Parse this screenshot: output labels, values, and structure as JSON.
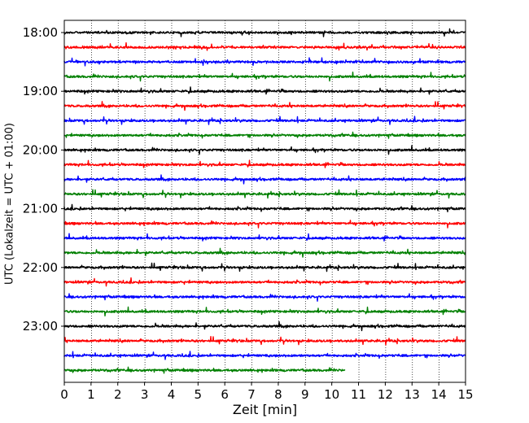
{
  "chart_data": {
    "type": "line",
    "subtype": "helicorder-seismogram",
    "xlabel": "Zeit  [min]",
    "ylabel": "UTC (Lokalzeit = UTC + 01:00)",
    "xlim": [
      0,
      15
    ],
    "x_ticks": [
      "0",
      "1",
      "2",
      "3",
      "4",
      "5",
      "6",
      "7",
      "8",
      "9",
      "10",
      "11",
      "12",
      "13",
      "14",
      "15"
    ],
    "y_ticks": [
      "18:00",
      "19:00",
      "20:00",
      "21:00",
      "22:00",
      "23:00"
    ],
    "grid": "vertical dotted lines at each minute",
    "trace_interval_minutes": 15,
    "color_cycle": [
      "#000000",
      "#ff0000",
      "#0000ff",
      "#008000"
    ],
    "traces": [
      {
        "start": "18:00",
        "end_minute": 15
      },
      {
        "start": "18:15",
        "end_minute": 15
      },
      {
        "start": "18:30",
        "end_minute": 15
      },
      {
        "start": "18:45",
        "end_minute": 15
      },
      {
        "start": "19:00",
        "end_minute": 15
      },
      {
        "start": "19:15",
        "end_minute": 15
      },
      {
        "start": "19:30",
        "end_minute": 15
      },
      {
        "start": "19:45",
        "end_minute": 15
      },
      {
        "start": "20:00",
        "end_minute": 15
      },
      {
        "start": "20:15",
        "end_minute": 15
      },
      {
        "start": "20:30",
        "end_minute": 15
      },
      {
        "start": "20:45",
        "end_minute": 15
      },
      {
        "start": "21:00",
        "end_minute": 15
      },
      {
        "start": "21:15",
        "end_minute": 15
      },
      {
        "start": "21:30",
        "end_minute": 15
      },
      {
        "start": "21:45",
        "end_minute": 15
      },
      {
        "start": "22:00",
        "end_minute": 15
      },
      {
        "start": "22:15",
        "end_minute": 15
      },
      {
        "start": "22:30",
        "end_minute": 15
      },
      {
        "start": "22:45",
        "end_minute": 15
      },
      {
        "start": "23:00",
        "end_minute": 15
      },
      {
        "start": "23:15",
        "end_minute": 15
      },
      {
        "start": "23:30",
        "end_minute": 15
      },
      {
        "start": "23:45",
        "end_minute": 10.5
      }
    ]
  }
}
